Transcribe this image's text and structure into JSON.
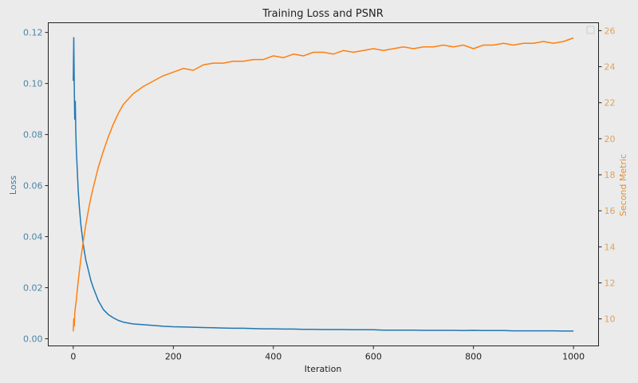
{
  "chart_data": {
    "type": "line",
    "title": "Training Loss and PSNR",
    "xlabel": "Iteration",
    "ylabel": "Loss",
    "ylabel_right": "Second Metric",
    "xlim": [
      -50,
      1050
    ],
    "ylim": [
      -0.0028,
      0.1238
    ],
    "ylim_right": [
      8.5,
      26.44
    ],
    "xticks": [
      0,
      200,
      400,
      600,
      800,
      1000
    ],
    "yticks": [
      "0.00",
      "0.02",
      "0.04",
      "0.06",
      "0.08",
      "0.10",
      "0.12"
    ],
    "yticks_right": [
      10,
      12,
      14,
      16,
      18,
      20,
      22,
      24,
      26
    ],
    "grid": false,
    "legend": "top-right (empty)",
    "colors": {
      "loss": "#1f77b4",
      "second": "#ff7f0e",
      "left_ticks": "#4a86a6",
      "right_ticks": "#e0a35a",
      "background": "#ebebeb"
    },
    "x": [
      0,
      1,
      2,
      3,
      4,
      5,
      6,
      8,
      10,
      12,
      15,
      20,
      25,
      30,
      35,
      40,
      50,
      60,
      70,
      80,
      90,
      100,
      120,
      140,
      160,
      180,
      200,
      220,
      240,
      260,
      280,
      300,
      320,
      340,
      360,
      380,
      400,
      420,
      440,
      460,
      480,
      500,
      520,
      540,
      560,
      580,
      600,
      620,
      640,
      660,
      680,
      700,
      720,
      740,
      760,
      780,
      800,
      820,
      840,
      860,
      880,
      900,
      920,
      940,
      960,
      980,
      1000
    ],
    "series": [
      {
        "axis": "left",
        "values": [
          0.101,
          0.118,
          0.1,
          0.086,
          0.093,
          0.082,
          0.075,
          0.066,
          0.058,
          0.052,
          0.045,
          0.037,
          0.031,
          0.027,
          0.023,
          0.02,
          0.015,
          0.0115,
          0.0095,
          0.0082,
          0.0072,
          0.0065,
          0.0058,
          0.0055,
          0.0052,
          0.0049,
          0.0047,
          0.0046,
          0.0045,
          0.0044,
          0.0043,
          0.0042,
          0.0041,
          0.0041,
          0.004,
          0.0039,
          0.0039,
          0.0038,
          0.0038,
          0.0037,
          0.0037,
          0.0036,
          0.0036,
          0.0036,
          0.0035,
          0.0035,
          0.0035,
          0.0034,
          0.0034,
          0.0034,
          0.0034,
          0.0033,
          0.0033,
          0.0033,
          0.0033,
          0.0032,
          0.0033,
          0.0032,
          0.0032,
          0.0032,
          0.0031,
          0.0031,
          0.0031,
          0.0031,
          0.0031,
          0.003,
          0.003
        ]
      },
      {
        "axis": "right",
        "values": [
          9.3,
          10.0,
          9.6,
          10.3,
          10.6,
          10.8,
          11.0,
          11.6,
          12.1,
          12.6,
          13.3,
          14.3,
          15.2,
          16.0,
          16.7,
          17.3,
          18.4,
          19.3,
          20.1,
          20.8,
          21.4,
          21.9,
          22.5,
          22.9,
          23.2,
          23.5,
          23.7,
          23.9,
          23.8,
          24.1,
          24.2,
          24.2,
          24.3,
          24.3,
          24.4,
          24.4,
          24.6,
          24.5,
          24.7,
          24.6,
          24.8,
          24.8,
          24.7,
          24.9,
          24.8,
          24.9,
          25.0,
          24.9,
          25.0,
          25.1,
          25.0,
          25.1,
          25.1,
          25.2,
          25.1,
          25.2,
          25.0,
          25.2,
          25.2,
          25.3,
          25.2,
          25.3,
          25.3,
          25.4,
          25.3,
          25.4,
          25.6
        ]
      }
    ]
  }
}
